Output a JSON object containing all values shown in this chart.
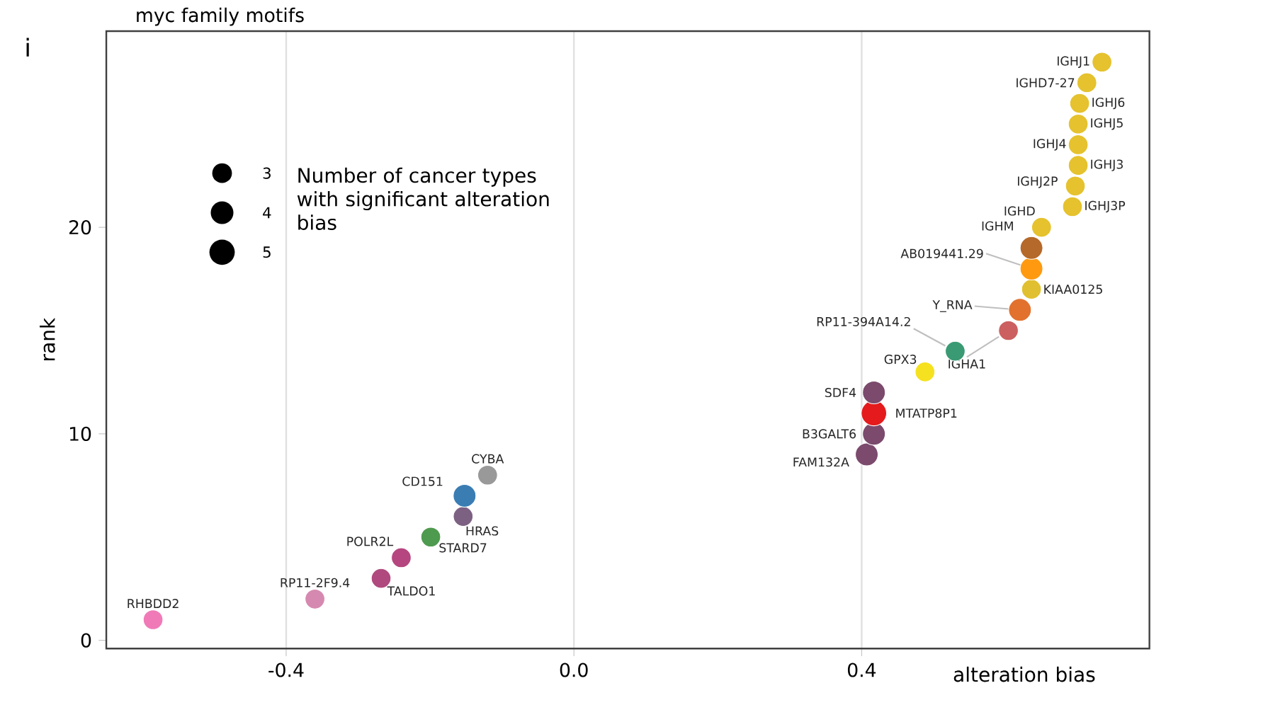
{
  "chart_data": {
    "type": "bubble",
    "title": "myc family motifs",
    "xlabel": "alteration bias",
    "ylabel": "rank",
    "x": [
      -0.585,
      -0.36,
      -0.268,
      -0.24,
      -0.199,
      -0.154,
      -0.152,
      -0.12,
      0.407,
      0.417,
      0.417,
      0.417,
      0.488,
      0.53,
      0.604,
      0.62,
      0.636,
      0.636,
      0.636,
      0.65,
      0.693,
      0.697,
      0.701,
      0.701,
      0.701,
      0.703,
      0.713,
      0.734
    ],
    "values": [
      1,
      2,
      3,
      4,
      5,
      6,
      7,
      8,
      9,
      10,
      11,
      12,
      13,
      14,
      15,
      16,
      17,
      18,
      19,
      20,
      21,
      22,
      23,
      24,
      25,
      26,
      27,
      28
    ],
    "sizes": [
      3,
      3,
      3,
      3,
      3,
      3,
      4,
      3,
      4,
      4,
      5,
      4,
      3,
      3,
      3,
      4,
      3,
      4,
      4,
      3,
      3,
      3,
      3,
      3,
      3,
      3,
      3,
      3
    ],
    "colors": [
      "#f07ab8",
      "#d689b0",
      "#b04a7e",
      "#b5467f",
      "#4e9a4e",
      "#7d6183",
      "#3a7db3",
      "#999999",
      "#7b4a6d",
      "#7b4a6d",
      "#e41a1c",
      "#7b4a6d",
      "#f5e11f",
      "#3a9a73",
      "#cc6060",
      "#e2712e",
      "#e0c030",
      "#ff9a10",
      "#b5692a",
      "#e5c22e",
      "#e5c22e",
      "#e5c22e",
      "#e5c22e",
      "#e5c22e",
      "#e5c22e",
      "#e5c22e",
      "#e5c22e",
      "#e5c22e"
    ],
    "size_legend": [
      3,
      4,
      5
    ],
    "legend_title": "Number of cancer types with significant alteration bias",
    "xlim": [
      -0.65,
      0.8
    ],
    "ylim": [
      -0.4,
      29.5
    ],
    "xticks": [
      {
        "value": -0.4,
        "label": "-0.4"
      },
      {
        "value": 0.0,
        "label": "0.0"
      },
      {
        "value": 0.4,
        "label": "0.4"
      }
    ],
    "yticks": [
      0,
      10,
      20
    ],
    "grid": "x",
    "annotations": [
      "i",
      {
        "text": "RHBDD2",
        "x": -0.585,
        "y": 1
      },
      {
        "text": "RP11-2F9.4",
        "x": -0.36,
        "y": 2
      },
      {
        "text": "TALDO1",
        "x": -0.268,
        "y": 3
      },
      {
        "text": "POLR2L",
        "x": -0.24,
        "y": 4
      },
      {
        "text": "STARD7",
        "x": -0.199,
        "y": 5
      },
      {
        "text": "HRAS",
        "x": -0.154,
        "y": 6
      },
      {
        "text": "CD151",
        "x": -0.152,
        "y": 7
      },
      {
        "text": "CYBA",
        "x": -0.12,
        "y": 8
      },
      {
        "text": "FAM132A",
        "x": 0.407,
        "y": 9
      },
      {
        "text": "B3GALT6",
        "x": 0.417,
        "y": 10
      },
      {
        "text": "MTATP8P1",
        "x": 0.417,
        "y": 11
      },
      {
        "text": "SDF4",
        "x": 0.417,
        "y": 12
      },
      {
        "text": "GPX3",
        "x": 0.488,
        "y": 13
      },
      {
        "text": "RP11-394A14.2",
        "x": 0.53,
        "y": 14
      },
      {
        "text": "IGHA1",
        "x": 0.604,
        "y": 15
      },
      {
        "text": "Y_RNA",
        "x": 0.62,
        "y": 16
      },
      {
        "text": "KIAA0125",
        "x": 0.636,
        "y": 17
      },
      {
        "text": "AB019441.29",
        "x": 0.636,
        "y": 18
      },
      {
        "text": "IGHM",
        "x": 0.636,
        "y": 19
      },
      {
        "text": "IGHD",
        "x": 0.65,
        "y": 20
      },
      {
        "text": "IGHJ3P",
        "x": 0.693,
        "y": 21
      },
      {
        "text": "IGHJ2P",
        "x": 0.697,
        "y": 22
      },
      {
        "text": "IGHJ3",
        "x": 0.701,
        "y": 23
      },
      {
        "text": "IGHJ4",
        "x": 0.701,
        "y": 24
      },
      {
        "text": "IGHJ5",
        "x": 0.701,
        "y": 25
      },
      {
        "text": "IGHJ6",
        "x": 0.703,
        "y": 26
      },
      {
        "text": "IGHD7-27",
        "x": 0.713,
        "y": 27
      },
      {
        "text": "IGHJ1",
        "x": 0.734,
        "y": 28
      }
    ]
  }
}
